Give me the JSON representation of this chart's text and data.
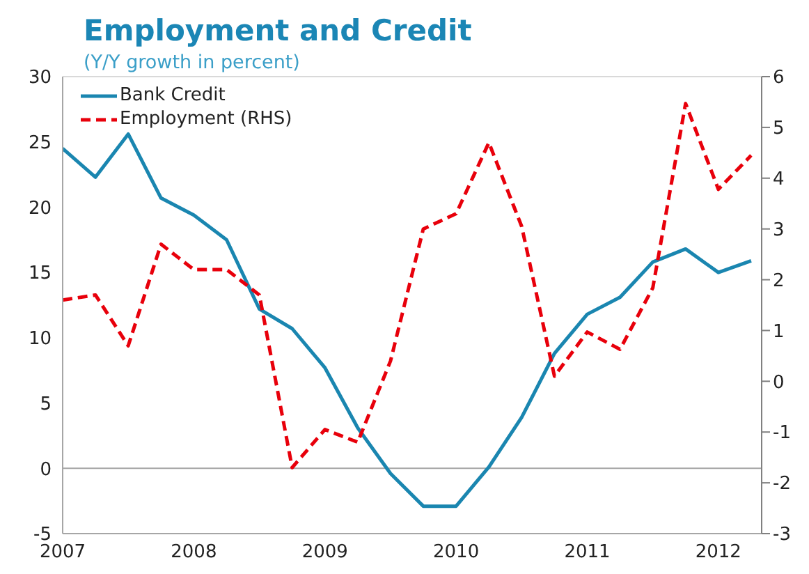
{
  "chart_data": {
    "type": "line",
    "title": "Employment and Credit",
    "subtitle": "(Y/Y growth in percent)",
    "x": [
      2007,
      2007.25,
      2007.5,
      2007.75,
      2008,
      2008.25,
      2008.5,
      2008.75,
      2009,
      2009.25,
      2009.5,
      2009.75,
      2010,
      2010.25,
      2010.5,
      2010.75,
      2011,
      2011.25,
      2011.5,
      2011.75,
      2012,
      2012.25
    ],
    "series": [
      {
        "name": "Bank Credit",
        "color": "#1a86b0",
        "line_style": "solid",
        "values": [
          24.5,
          22.3,
          25.6,
          20.7,
          19.4,
          17.5,
          12.2,
          10.7,
          7.7,
          3.1,
          -0.4,
          -2.9,
          -2.9,
          0.1,
          3.9,
          8.8,
          11.8,
          13.1,
          15.8,
          16.8,
          15.0,
          15.9
        ]
      },
      {
        "name": "Employment (RHS)",
        "color": "#e8000b",
        "line_style": "dashed",
        "axis": "y2",
        "values": [
          1.6,
          1.7,
          0.7,
          2.7,
          2.2,
          2.2,
          1.7,
          -1.7,
          -0.95,
          -1.2,
          0.4,
          3.0,
          3.3,
          4.7,
          3.05,
          0.1,
          0.97,
          0.63,
          1.84,
          5.47,
          3.78,
          4.45
        ]
      }
    ],
    "xlim": [
      2007,
      2012.33
    ],
    "xticks": [
      2007,
      2008,
      2009,
      2010,
      2011,
      2012
    ],
    "ylim": [
      -5,
      30
    ],
    "yticks": [
      -5,
      0,
      5,
      10,
      15,
      20,
      25,
      30
    ],
    "y2lim": [
      -3,
      6
    ],
    "y2ticks": [
      -3,
      -2,
      -1,
      0,
      1,
      2,
      3,
      4,
      5,
      6
    ],
    "ref_lines": [
      {
        "axis": "y",
        "value": 0,
        "color": "#a6a6a6"
      }
    ],
    "grid": false,
    "legend": "top left",
    "marker": "none"
  }
}
